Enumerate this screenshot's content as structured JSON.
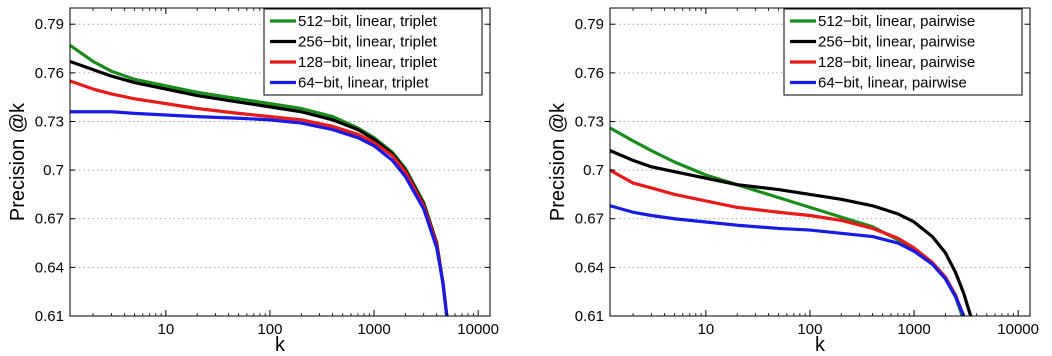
{
  "chart_data": [
    {
      "type": "line",
      "title": "",
      "xlabel": "k",
      "ylabel": "Precision @k",
      "x_scale": "log",
      "xlim": [
        1.2,
        13000
      ],
      "ylim": [
        0.61,
        0.8
      ],
      "xticks": [
        10,
        100,
        1000,
        10000
      ],
      "xtick_labels": [
        "10",
        "100",
        "1000",
        "10000"
      ],
      "yticks": [
        0.61,
        0.64,
        0.67,
        0.7,
        0.73,
        0.76,
        0.79
      ],
      "ytick_labels": [
        "0.61",
        "0.64",
        "0.67",
        "0.7",
        "0.73",
        "0.76",
        "0.79"
      ],
      "grid": "y-dotted",
      "legend_position": "top-right",
      "series": [
        {
          "name": "512−bit, linear, triplet",
          "color": "#1a8c1a",
          "points": [
            [
              1.2,
              0.777
            ],
            [
              2,
              0.767
            ],
            [
              3,
              0.761
            ],
            [
              5,
              0.756
            ],
            [
              10,
              0.752
            ],
            [
              20,
              0.748
            ],
            [
              50,
              0.744
            ],
            [
              100,
              0.741
            ],
            [
              200,
              0.738
            ],
            [
              400,
              0.733
            ],
            [
              700,
              0.726
            ],
            [
              1000,
              0.72
            ],
            [
              1500,
              0.711
            ],
            [
              2000,
              0.701
            ],
            [
              3000,
              0.68
            ],
            [
              4000,
              0.655
            ],
            [
              4600,
              0.63
            ],
            [
              5000,
              0.61
            ]
          ]
        },
        {
          "name": "256−bit, linear, triplet",
          "color": "#000000",
          "points": [
            [
              1.2,
              0.767
            ],
            [
              2,
              0.762
            ],
            [
              3,
              0.758
            ],
            [
              5,
              0.754
            ],
            [
              10,
              0.75
            ],
            [
              20,
              0.746
            ],
            [
              50,
              0.742
            ],
            [
              100,
              0.739
            ],
            [
              200,
              0.736
            ],
            [
              400,
              0.731
            ],
            [
              700,
              0.725
            ],
            [
              1000,
              0.719
            ],
            [
              1500,
              0.71
            ],
            [
              2000,
              0.7
            ],
            [
              3000,
              0.679
            ],
            [
              4000,
              0.655
            ],
            [
              4600,
              0.63
            ],
            [
              5000,
              0.61
            ]
          ]
        },
        {
          "name": "128−bit, linear, triplet",
          "color": "#e81a1a",
          "points": [
            [
              1.2,
              0.755
            ],
            [
              2,
              0.75
            ],
            [
              3,
              0.747
            ],
            [
              5,
              0.744
            ],
            [
              10,
              0.741
            ],
            [
              20,
              0.738
            ],
            [
              50,
              0.735
            ],
            [
              100,
              0.733
            ],
            [
              200,
              0.731
            ],
            [
              400,
              0.727
            ],
            [
              700,
              0.722
            ],
            [
              1000,
              0.717
            ],
            [
              1500,
              0.709
            ],
            [
              2000,
              0.699
            ],
            [
              3000,
              0.678
            ],
            [
              4000,
              0.654
            ],
            [
              4600,
              0.63
            ],
            [
              5000,
              0.61
            ]
          ]
        },
        {
          "name": "64−bit, linear, triplet",
          "color": "#1a1ae6",
          "points": [
            [
              1.2,
              0.736
            ],
            [
              2,
              0.736
            ],
            [
              3,
              0.736
            ],
            [
              5,
              0.735
            ],
            [
              10,
              0.734
            ],
            [
              20,
              0.733
            ],
            [
              50,
              0.732
            ],
            [
              100,
              0.731
            ],
            [
              200,
              0.729
            ],
            [
              400,
              0.725
            ],
            [
              700,
              0.72
            ],
            [
              1000,
              0.715
            ],
            [
              1500,
              0.706
            ],
            [
              2000,
              0.696
            ],
            [
              3000,
              0.676
            ],
            [
              4000,
              0.652
            ],
            [
              4600,
              0.63
            ],
            [
              5000,
              0.61
            ]
          ]
        }
      ]
    },
    {
      "type": "line",
      "title": "",
      "xlabel": "k",
      "ylabel": "Precision @k",
      "x_scale": "log",
      "xlim": [
        1.2,
        13000
      ],
      "ylim": [
        0.61,
        0.8
      ],
      "xticks": [
        10,
        100,
        1000,
        10000
      ],
      "xtick_labels": [
        "10",
        "100",
        "1000",
        "10000"
      ],
      "yticks": [
        0.61,
        0.64,
        0.67,
        0.7,
        0.73,
        0.76,
        0.79
      ],
      "ytick_labels": [
        "0.61",
        "0.64",
        "0.67",
        "0.7",
        "0.73",
        "0.76",
        "0.79"
      ],
      "grid": "y-dotted",
      "legend_position": "top-right",
      "series": [
        {
          "name": "512−bit, linear, pairwise",
          "color": "#1a8c1a",
          "points": [
            [
              1.2,
              0.726
            ],
            [
              2,
              0.718
            ],
            [
              3,
              0.712
            ],
            [
              5,
              0.705
            ],
            [
              10,
              0.697
            ],
            [
              20,
              0.691
            ],
            [
              50,
              0.683
            ],
            [
              100,
              0.677
            ],
            [
              200,
              0.671
            ],
            [
              400,
              0.665
            ],
            [
              700,
              0.657
            ],
            [
              1000,
              0.65
            ],
            [
              1500,
              0.642
            ],
            [
              2000,
              0.633
            ],
            [
              2500,
              0.622
            ],
            [
              2900,
              0.61
            ]
          ]
        },
        {
          "name": "256−bit, linear, pairwise",
          "color": "#000000",
          "points": [
            [
              1.2,
              0.712
            ],
            [
              2,
              0.706
            ],
            [
              3,
              0.702
            ],
            [
              5,
              0.699
            ],
            [
              10,
              0.695
            ],
            [
              20,
              0.691
            ],
            [
              50,
              0.688
            ],
            [
              100,
              0.685
            ],
            [
              200,
              0.682
            ],
            [
              400,
              0.678
            ],
            [
              700,
              0.673
            ],
            [
              1000,
              0.668
            ],
            [
              1500,
              0.659
            ],
            [
              2000,
              0.649
            ],
            [
              2500,
              0.637
            ],
            [
              3000,
              0.624
            ],
            [
              3500,
              0.61
            ]
          ]
        },
        {
          "name": "128−bit, linear, pairwise",
          "color": "#e81a1a",
          "points": [
            [
              1.2,
              0.7
            ],
            [
              2,
              0.692
            ],
            [
              3,
              0.689
            ],
            [
              5,
              0.685
            ],
            [
              10,
              0.681
            ],
            [
              20,
              0.677
            ],
            [
              50,
              0.674
            ],
            [
              100,
              0.672
            ],
            [
              200,
              0.669
            ],
            [
              400,
              0.664
            ],
            [
              700,
              0.658
            ],
            [
              1000,
              0.652
            ],
            [
              1500,
              0.643
            ],
            [
              2000,
              0.634
            ],
            [
              2500,
              0.623
            ],
            [
              3000,
              0.61
            ]
          ]
        },
        {
          "name": "64−bit, linear, pairwise",
          "color": "#1a1ae6",
          "points": [
            [
              1.2,
              0.678
            ],
            [
              2,
              0.674
            ],
            [
              3,
              0.672
            ],
            [
              5,
              0.67
            ],
            [
              10,
              0.668
            ],
            [
              20,
              0.666
            ],
            [
              50,
              0.664
            ],
            [
              100,
              0.663
            ],
            [
              200,
              0.661
            ],
            [
              400,
              0.659
            ],
            [
              700,
              0.655
            ],
            [
              1000,
              0.65
            ],
            [
              1500,
              0.642
            ],
            [
              2000,
              0.633
            ],
            [
              2500,
              0.622
            ],
            [
              3000,
              0.61
            ]
          ]
        }
      ]
    }
  ]
}
